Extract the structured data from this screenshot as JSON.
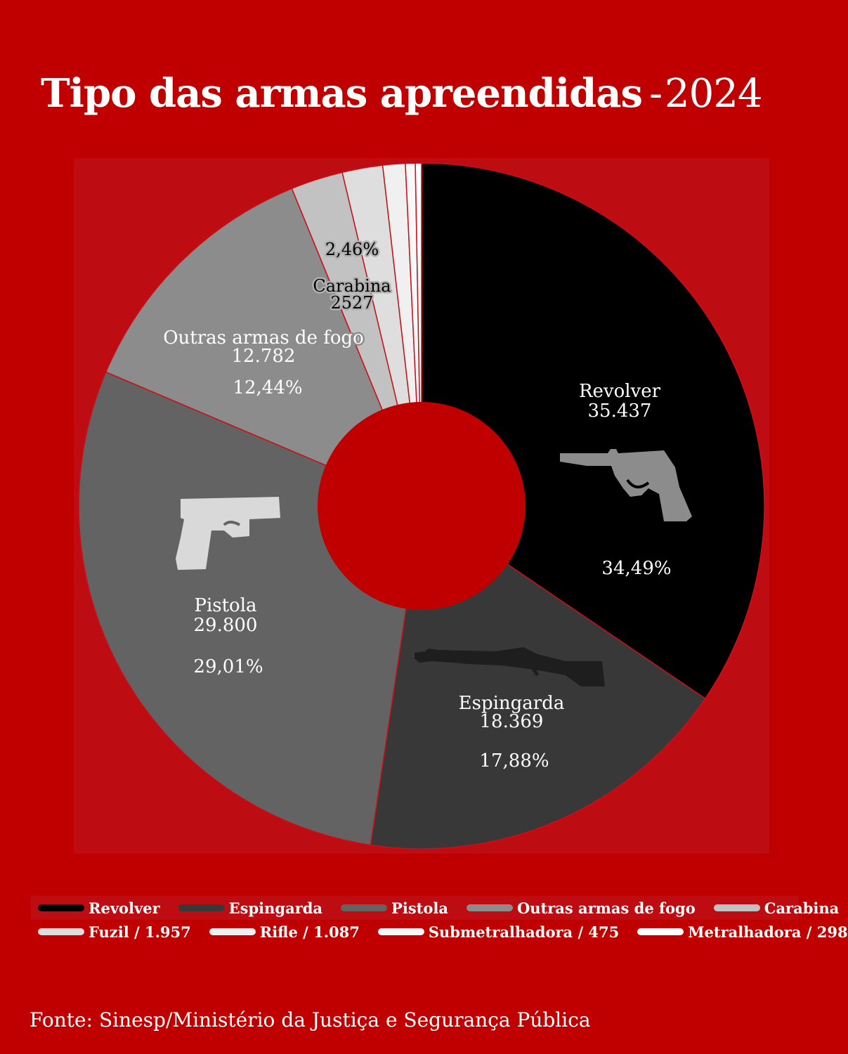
{
  "title": {
    "main": "Tipo das armas apreendidas",
    "dash": "-",
    "year": "2024"
  },
  "colors": {
    "background": "#c00000",
    "panel": "#bd0d13",
    "separator": "#c8101a"
  },
  "chart_data": {
    "type": "pie",
    "donut": true,
    "title": "Tipo das armas apreendidas - 2024",
    "slices": [
      {
        "label": "Revolver",
        "value": 35437,
        "value_label": "35.437",
        "percent": 34.49,
        "percent_label": "34,49%",
        "color": "#000000",
        "icon": "revolver-icon"
      },
      {
        "label": "Espingarda",
        "value": 18369,
        "value_label": "18.369",
        "percent": 17.88,
        "percent_label": "17,88%",
        "color": "#383838",
        "icon": "shotgun-icon"
      },
      {
        "label": "Pistola",
        "value": 29800,
        "value_label": "29.800",
        "percent": 29.01,
        "percent_label": "29,01%",
        "color": "#636363",
        "icon": "pistol-icon"
      },
      {
        "label": "Outras armas de fogo",
        "value": 12782,
        "value_label": "12.782",
        "percent": 12.44,
        "percent_label": "12,44%",
        "color": "#8c8c8c"
      },
      {
        "label": "Carabina",
        "value": 2527,
        "value_label": "2527",
        "percent": 2.46,
        "percent_label": "2,46%",
        "color": "#c2c2c2"
      },
      {
        "label": "Fuzil",
        "value": 1957,
        "value_label": "1.957",
        "color": "#dedede"
      },
      {
        "label": "Rifle",
        "value": 1087,
        "value_label": "1.087",
        "color": "#f0f0f0"
      },
      {
        "label": "Submetralhadora",
        "value": 475,
        "value_label": "475",
        "color": "#f8f8f8"
      },
      {
        "label": "Metralhadora",
        "value": 298,
        "value_label": "298",
        "color": "#ffffff"
      }
    ]
  },
  "legend": {
    "rows": [
      [
        {
          "label": "Revolver",
          "color": "#000000"
        },
        {
          "label": "Espingarda",
          "color": "#383838"
        },
        {
          "label": "Pistola",
          "color": "#636363"
        },
        {
          "label": "Outras armas de fogo",
          "color": "#8c8c8c"
        },
        {
          "label": "Carabina",
          "color": "#c2c2c2"
        }
      ],
      [
        {
          "label": "Fuzil / 1.957",
          "color": "#dedede"
        },
        {
          "label": "Rifle / 1.087",
          "color": "#f0f0f0"
        },
        {
          "label": "Submetralhadora / 475",
          "color": "#f8f8f8"
        },
        {
          "label": "Metralhadora / 298",
          "color": "#ffffff"
        }
      ]
    ]
  },
  "source": "Fonte: Sinesp/Ministério da Justiça e Segurança Pública"
}
